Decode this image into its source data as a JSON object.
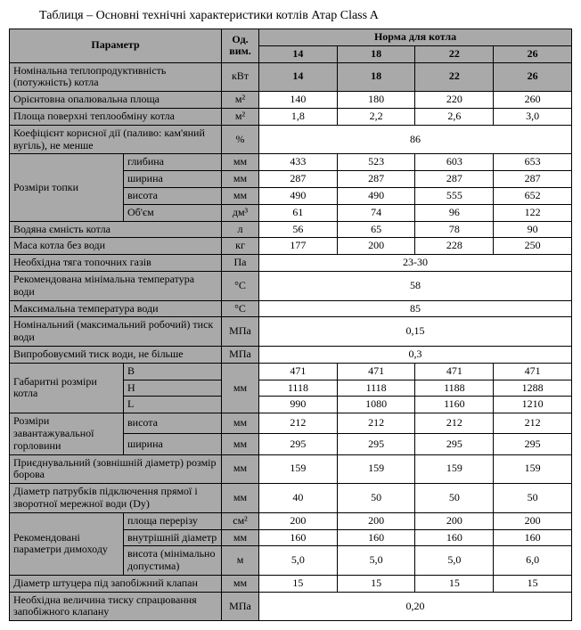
{
  "caption": "Таблиця – Основні технічні характеристики котлів Атар Class A",
  "head": {
    "param": "Параметр",
    "unit": "Од. вим.",
    "right": "Норма для котла",
    "models": [
      "14",
      "18",
      "22",
      "26"
    ]
  },
  "r": {
    "nom_power": {
      "p": "Номінальна теплопродуктивність (потужність) котла",
      "u": "кВт"
    },
    "area": {
      "p": "Орієнтовна опалювальна площа",
      "u": "м²",
      "v": [
        "140",
        "180",
        "220",
        "260"
      ]
    },
    "surface": {
      "p": "Площа поверхні теплообміну котла",
      "u": "м²",
      "v": [
        "1,8",
        "2,2",
        "2,6",
        "3,0"
      ]
    },
    "eff": {
      "p": "Коефіцієнт корисної дії (паливо: кам'яний вугіль), не менше",
      "u": "%",
      "m": "86"
    },
    "firebox_lbl": "Розміри топки",
    "depth": {
      "s": "глибина",
      "u": "мм",
      "v": [
        "433",
        "523",
        "603",
        "653"
      ]
    },
    "width": {
      "s": "ширина",
      "u": "мм",
      "v": [
        "287",
        "287",
        "287",
        "287"
      ]
    },
    "height": {
      "s": "висота",
      "u": "мм",
      "v": [
        "490",
        "490",
        "555",
        "652"
      ]
    },
    "vol": {
      "s": "Об'єм",
      "u": "дм³",
      "v": [
        "61",
        "74",
        "96",
        "122"
      ]
    },
    "water": {
      "p": "Водяна ємність котла",
      "u": "л",
      "v": [
        "56",
        "65",
        "78",
        "90"
      ]
    },
    "mass": {
      "p": "Маса котла без води",
      "u": "кг",
      "v": [
        "177",
        "200",
        "228",
        "250"
      ]
    },
    "draft": {
      "p": "Необхідна тяга топочних газів",
      "u": "Па",
      "m": "23-30"
    },
    "tmin": {
      "p": "Рекомендована мінімальна температура води",
      "u": "°С",
      "m": "58"
    },
    "tmax": {
      "p": "Максимальна температура води",
      "u": "°С",
      "m": "85"
    },
    "pnom": {
      "p": "Номінальний (максимальний робочий) тиск води",
      "u": "МПа",
      "m": "0,15"
    },
    "ptest": {
      "p": "Випробовуємий тиск води, не більше",
      "u": "МПа",
      "m": "0,3"
    },
    "dim_lbl": "Габаритні розміри котла",
    "B": {
      "s": "B",
      "v": [
        "471",
        "471",
        "471",
        "471"
      ]
    },
    "H": {
      "s": "H",
      "u": "мм",
      "v": [
        "1118",
        "1118",
        "1188",
        "1288"
      ]
    },
    "L": {
      "s": "L",
      "v": [
        "990",
        "1080",
        "1160",
        "1210"
      ]
    },
    "load_lbl": "Розміри завантажувальної горловини",
    "load_h": {
      "s": "висота",
      "u": "мм",
      "v": [
        "212",
        "212",
        "212",
        "212"
      ]
    },
    "load_w": {
      "s": "ширина",
      "u": "мм",
      "v": [
        "295",
        "295",
        "295",
        "295"
      ]
    },
    "flue": {
      "p": "Приєднувальний (зовнішній діаметр) розмір борова",
      "u": "мм",
      "v": [
        "159",
        "159",
        "159",
        "159"
      ]
    },
    "pipe": {
      "p": "Діаметр патрубків підключення прямої і зворотної мережної води (Dу)",
      "u": "мм",
      "v": [
        "40",
        "50",
        "50",
        "50"
      ]
    },
    "chim_lbl": "Рекомендовані параметри димоходу",
    "chim_a": {
      "s": "площа перерізу",
      "u": "см²",
      "v": [
        "200",
        "200",
        "200",
        "200"
      ]
    },
    "chim_d": {
      "s": "внутрішній діаметр",
      "u": "мм",
      "v": [
        "160",
        "160",
        "160",
        "160"
      ]
    },
    "chim_h": {
      "s": "висота (мінімально допустима)",
      "u": "м",
      "v": [
        "5,0",
        "5,0",
        "5,0",
        "6,0"
      ]
    },
    "valve": {
      "p": "Діаметр штуцера під запобіжний клапан",
      "u": "мм",
      "v": [
        "15",
        "15",
        "15",
        "15"
      ]
    },
    "valve_p": {
      "p": "Необхідна величина тиску спрацювання запобіжного клапану",
      "u": "МПа",
      "m": "0,20"
    }
  }
}
